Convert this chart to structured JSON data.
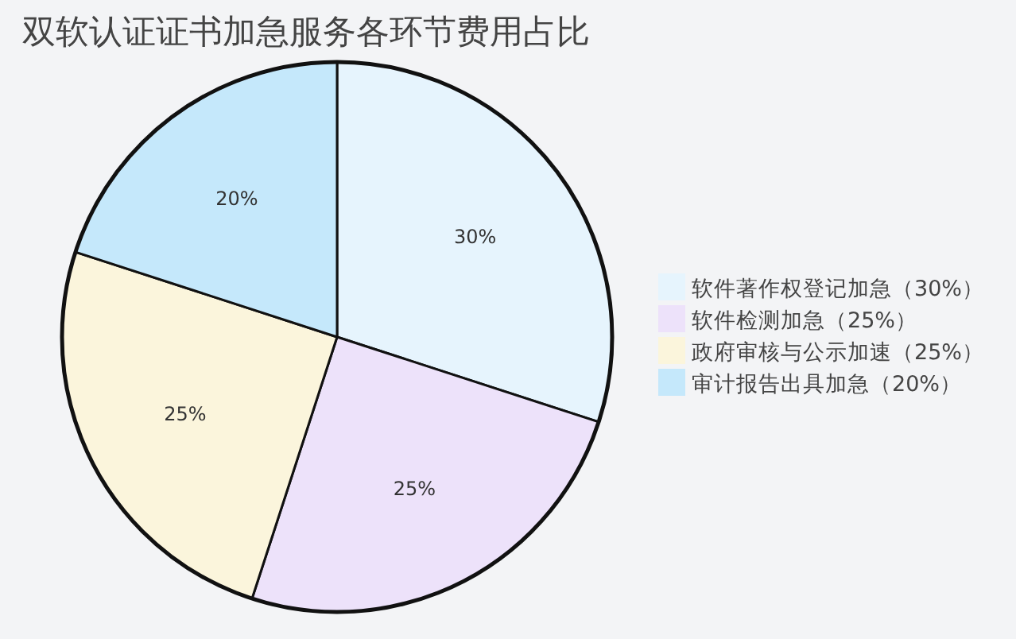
{
  "chart_data": {
    "type": "pie",
    "title": "双软认证证书加急服务各环节费用占比",
    "categories": [
      "软件著作权登记加急（30%）",
      "软件检测加急（25%）",
      "政府审核与公示加速（25%）",
      "审计报告出具加急（20%）"
    ],
    "values": [
      30,
      25,
      25,
      20
    ],
    "colors": [
      "#e6f4fd",
      "#ede2fa",
      "#fbf5dc",
      "#c5e8fb"
    ],
    "value_labels": [
      "30%",
      "25%",
      "25%",
      "20%"
    ],
    "legend": "right"
  }
}
